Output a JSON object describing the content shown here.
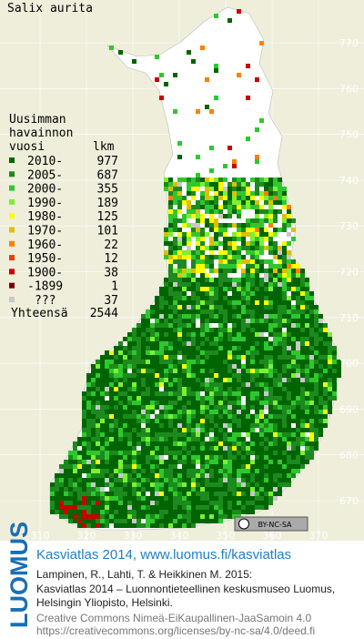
{
  "title": "Salix aurita",
  "legend": {
    "header": [
      "Uusimman",
      "havainnon",
      "vuosi"
    ],
    "count_header": "lkm",
    "rows": [
      {
        "label": "2010-",
        "count": 977,
        "color": "#006400"
      },
      {
        "label": "2005-",
        "count": 687,
        "color": "#1c8a1c"
      },
      {
        "label": "2000-",
        "count": 355,
        "color": "#2ec82e"
      },
      {
        "label": "1990-",
        "count": 189,
        "color": "#7cf032"
      },
      {
        "label": "1980-",
        "count": 125,
        "color": "#ffff00"
      },
      {
        "label": "1970-",
        "count": 101,
        "color": "#dcc000"
      },
      {
        "label": "1960-",
        "count": 22,
        "color": "#ff8000"
      },
      {
        "label": "1950-",
        "count": 12,
        "color": "#e04000"
      },
      {
        "label": "1900-",
        "count": 38,
        "color": "#c80000"
      },
      {
        "label": "-1899",
        "count": 1,
        "color": "#780000"
      },
      {
        "label": "???",
        "count": 37,
        "color": "#c8c8c8"
      }
    ],
    "total_label": "Yhteensä",
    "total": 2544
  },
  "grid": {
    "xticks": [
      310,
      320,
      330,
      340,
      350,
      360,
      370
    ],
    "yticks": [
      770,
      760,
      750,
      740,
      730,
      720,
      710,
      700,
      690,
      680,
      670
    ]
  },
  "license_badge": "BY-NC-SA",
  "footer": {
    "logo": "LUOMUS",
    "heading": "Kasviatlas 2014, www.luomus.fi/kasviatlas",
    "citation": [
      "Lampinen, R., Lahti, T. & Heikkinen M. 2015:",
      "Kasviatlas 2014 – Luonnontieteellinen keskusmuseo Luomus,",
      "Helsingin Yliopisto, Helsinki."
    ],
    "license": [
      "Creative Commons Nimeä-EiKaupallinen-JaaSamoin 4.0",
      "https://creativecommons.org/licenses/by-nc-sa/4.0/deed.fi"
    ]
  }
}
